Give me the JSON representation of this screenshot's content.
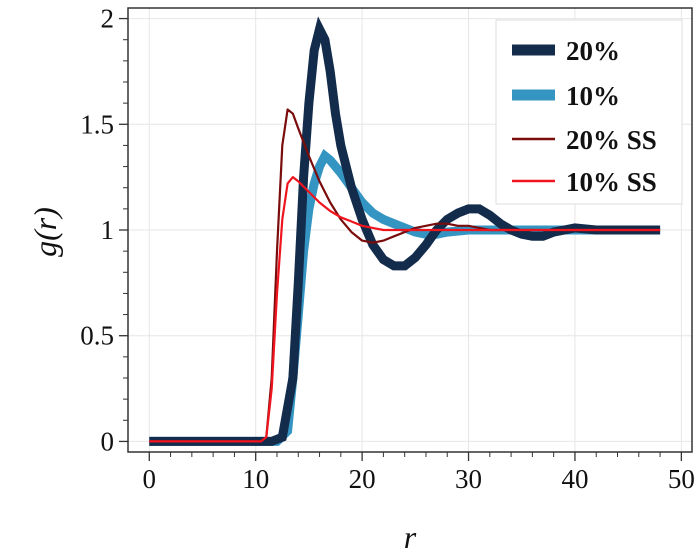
{
  "chart_data": {
    "type": "line",
    "xlabel": "r",
    "ylabel": "g(r)",
    "xlim": [
      -2,
      51
    ],
    "ylim": [
      -0.05,
      2.05
    ],
    "grid": true,
    "legend_position": "top-right",
    "x_ticks": [
      0,
      10,
      20,
      30,
      40,
      50
    ],
    "y_ticks": [
      0,
      0.5,
      1,
      1.5,
      2
    ],
    "x_tick_labels": [
      "0",
      "10",
      "20",
      "30",
      "40",
      "50"
    ],
    "y_tick_labels": [
      "0",
      "0.5",
      "1",
      "1.5",
      "2"
    ],
    "series": [
      {
        "name": "20%",
        "color": "#142c4c",
        "style": "thick-noisy",
        "x": [
          0,
          10,
          11.5,
          12.5,
          13.5,
          14,
          14.5,
          15,
          15.5,
          16,
          16.5,
          17,
          17.5,
          18,
          19,
          20,
          21,
          22,
          23,
          24,
          25,
          26,
          27,
          28,
          29,
          30,
          31,
          32,
          33,
          34,
          35,
          36,
          37,
          38,
          40,
          42,
          44,
          46,
          48
        ],
        "y": [
          0,
          0,
          0,
          0.02,
          0.3,
          0.75,
          1.25,
          1.6,
          1.85,
          1.95,
          1.9,
          1.75,
          1.55,
          1.4,
          1.2,
          1.05,
          0.93,
          0.86,
          0.83,
          0.83,
          0.87,
          0.93,
          1.0,
          1.05,
          1.08,
          1.1,
          1.1,
          1.07,
          1.03,
          1.0,
          0.98,
          0.97,
          0.97,
          0.99,
          1.01,
          1.0,
          1.0,
          1.0,
          1.0
        ]
      },
      {
        "name": "10%",
        "color": "#3595c2",
        "style": "thick-noisy",
        "x": [
          0,
          10,
          12,
          13,
          13.5,
          14,
          14.5,
          15,
          15.5,
          16,
          16.5,
          17,
          18,
          19,
          20,
          21,
          22,
          23,
          24,
          25,
          26,
          27,
          28,
          30,
          32,
          34,
          36,
          38,
          40,
          42,
          44,
          46,
          48
        ],
        "y": [
          0,
          0,
          0,
          0.05,
          0.3,
          0.6,
          0.9,
          1.1,
          1.22,
          1.3,
          1.35,
          1.33,
          1.27,
          1.2,
          1.13,
          1.08,
          1.05,
          1.03,
          1.01,
          0.99,
          0.98,
          0.98,
          0.99,
          1.0,
          1.0,
          1.0,
          1.0,
          1.0,
          1.0,
          1.0,
          1.0,
          1.0,
          1.0
        ]
      },
      {
        "name": "20% SS",
        "color": "#7a0c0c",
        "style": "thin",
        "x": [
          0,
          10.5,
          11,
          11.5,
          12,
          12.5,
          13,
          13.5,
          14,
          15,
          16,
          17,
          18,
          19,
          20,
          21,
          22,
          23,
          24,
          25,
          26,
          27,
          28,
          29,
          30,
          31,
          32,
          34,
          36,
          40,
          44,
          48
        ],
        "y": [
          0,
          0,
          0.02,
          0.3,
          0.9,
          1.4,
          1.57,
          1.55,
          1.48,
          1.35,
          1.23,
          1.13,
          1.05,
          0.99,
          0.95,
          0.94,
          0.95,
          0.97,
          0.99,
          1.01,
          1.02,
          1.03,
          1.03,
          1.02,
          1.02,
          1.01,
          1.0,
          1.0,
          1.0,
          1.0,
          1.0,
          1.0
        ]
      },
      {
        "name": "10% SS",
        "color": "#f0141e",
        "style": "thin",
        "x": [
          0,
          10.5,
          11,
          11.5,
          12,
          12.5,
          13,
          13.5,
          14,
          15,
          16,
          17,
          18,
          19,
          20,
          21,
          22,
          23,
          24,
          26,
          28,
          30,
          32,
          36,
          40,
          44,
          48
        ],
        "y": [
          0,
          0,
          0.02,
          0.25,
          0.7,
          1.05,
          1.22,
          1.25,
          1.23,
          1.18,
          1.13,
          1.09,
          1.06,
          1.04,
          1.02,
          1.01,
          1.0,
          1.0,
          1.0,
          1.0,
          1.0,
          1.0,
          1.0,
          1.0,
          1.0,
          1.0,
          1.0
        ]
      }
    ]
  }
}
